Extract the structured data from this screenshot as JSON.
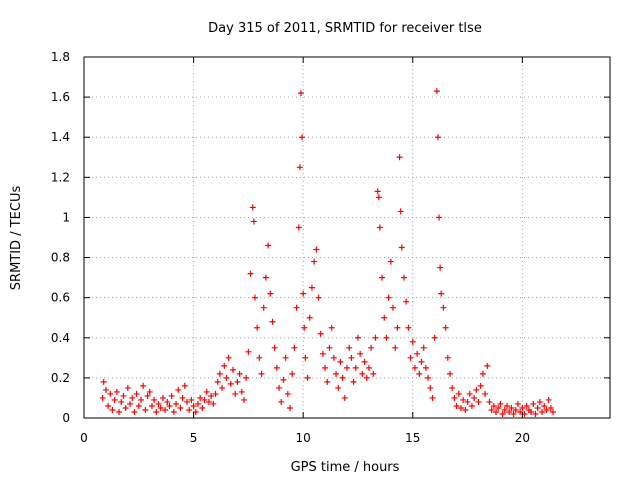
{
  "chart_data": {
    "type": "scatter",
    "title": "Day 315 of 2011, SRMTID for receiver tlse",
    "xlabel": "GPS time / hours",
    "ylabel": "SRMTID / TECUs",
    "xlim": [
      0,
      24
    ],
    "ylim": [
      0,
      1.8
    ],
    "xticks": [
      0,
      5,
      10,
      15,
      20
    ],
    "yticks": [
      0,
      0.2,
      0.4,
      0.6,
      0.8,
      1,
      1.2,
      1.4,
      1.6,
      1.8
    ],
    "xtick_labels": [
      "0",
      "5",
      "10",
      "15",
      "20"
    ],
    "ytick_labels": [
      "0",
      "0.2",
      "0.4",
      "0.6",
      "0.8",
      "1",
      "1.2",
      "1.4",
      "1.6",
      "1.8"
    ],
    "grid": true,
    "marker": "plus",
    "color": "#ff0000",
    "series": [
      {
        "name": "SRMTID",
        "points": [
          [
            0.85,
            0.1
          ],
          [
            0.9,
            0.18
          ],
          [
            1.0,
            0.14
          ],
          [
            1.1,
            0.06
          ],
          [
            1.2,
            0.12
          ],
          [
            1.3,
            0.04
          ],
          [
            1.4,
            0.09
          ],
          [
            1.5,
            0.13
          ],
          [
            1.6,
            0.03
          ],
          [
            1.7,
            0.08
          ],
          [
            1.8,
            0.11
          ],
          [
            1.9,
            0.05
          ],
          [
            2.0,
            0.15
          ],
          [
            2.1,
            0.07
          ],
          [
            2.2,
            0.1
          ],
          [
            2.3,
            0.03
          ],
          [
            2.4,
            0.12
          ],
          [
            2.5,
            0.06
          ],
          [
            2.6,
            0.09
          ],
          [
            2.7,
            0.16
          ],
          [
            2.8,
            0.04
          ],
          [
            2.9,
            0.11
          ],
          [
            3.0,
            0.13
          ],
          [
            3.1,
            0.06
          ],
          [
            3.2,
            0.09
          ],
          [
            3.3,
            0.03
          ],
          [
            3.4,
            0.07
          ],
          [
            3.5,
            0.05
          ],
          [
            3.6,
            0.1
          ],
          [
            3.7,
            0.04
          ],
          [
            3.8,
            0.08
          ],
          [
            3.9,
            0.06
          ],
          [
            4.0,
            0.11
          ],
          [
            4.1,
            0.03
          ],
          [
            4.2,
            0.07
          ],
          [
            4.3,
            0.14
          ],
          [
            4.4,
            0.05
          ],
          [
            4.5,
            0.1
          ],
          [
            4.6,
            0.16
          ],
          [
            4.7,
            0.08
          ],
          [
            4.8,
            0.04
          ],
          [
            4.9,
            0.09
          ],
          [
            5.0,
            0.06
          ],
          [
            5.1,
            0.03
          ],
          [
            5.2,
            0.07
          ],
          [
            5.3,
            0.1
          ],
          [
            5.4,
            0.05
          ],
          [
            5.5,
            0.09
          ],
          [
            5.6,
            0.13
          ],
          [
            5.7,
            0.08
          ],
          [
            5.8,
            0.11
          ],
          [
            5.9,
            0.07
          ],
          [
            6.0,
            0.12
          ],
          [
            6.1,
            0.18
          ],
          [
            6.2,
            0.22
          ],
          [
            6.3,
            0.15
          ],
          [
            6.4,
            0.26
          ],
          [
            6.5,
            0.2
          ],
          [
            6.6,
            0.3
          ],
          [
            6.7,
            0.17
          ],
          [
            6.8,
            0.24
          ],
          [
            6.9,
            0.12
          ],
          [
            7.0,
            0.18
          ],
          [
            7.1,
            0.22
          ],
          [
            7.2,
            0.13
          ],
          [
            7.3,
            0.09
          ],
          [
            7.4,
            0.2
          ],
          [
            7.5,
            0.33
          ],
          [
            7.6,
            0.72
          ],
          [
            7.7,
            1.05
          ],
          [
            7.75,
            0.98
          ],
          [
            7.8,
            0.6
          ],
          [
            7.9,
            0.45
          ],
          [
            8.0,
            0.3
          ],
          [
            8.1,
            0.22
          ],
          [
            8.2,
            0.55
          ],
          [
            8.3,
            0.7
          ],
          [
            8.4,
            0.86
          ],
          [
            8.5,
            0.62
          ],
          [
            8.6,
            0.48
          ],
          [
            8.7,
            0.35
          ],
          [
            8.8,
            0.25
          ],
          [
            8.9,
            0.15
          ],
          [
            9.0,
            0.08
          ],
          [
            9.1,
            0.19
          ],
          [
            9.2,
            0.3
          ],
          [
            9.3,
            0.12
          ],
          [
            9.4,
            0.05
          ],
          [
            9.5,
            0.22
          ],
          [
            9.6,
            0.35
          ],
          [
            9.7,
            0.55
          ],
          [
            9.8,
            0.95
          ],
          [
            9.85,
            1.25
          ],
          [
            9.9,
            1.62
          ],
          [
            9.95,
            1.4
          ],
          [
            10.0,
            0.62
          ],
          [
            10.05,
            0.45
          ],
          [
            10.1,
            0.3
          ],
          [
            10.2,
            0.2
          ],
          [
            10.3,
            0.5
          ],
          [
            10.4,
            0.65
          ],
          [
            10.5,
            0.78
          ],
          [
            10.6,
            0.84
          ],
          [
            10.7,
            0.6
          ],
          [
            10.8,
            0.42
          ],
          [
            10.9,
            0.32
          ],
          [
            11.0,
            0.25
          ],
          [
            11.1,
            0.18
          ],
          [
            11.2,
            0.35
          ],
          [
            11.3,
            0.45
          ],
          [
            11.4,
            0.3
          ],
          [
            11.5,
            0.22
          ],
          [
            11.6,
            0.15
          ],
          [
            11.7,
            0.28
          ],
          [
            11.8,
            0.2
          ],
          [
            11.9,
            0.1
          ],
          [
            12.0,
            0.25
          ],
          [
            12.1,
            0.35
          ],
          [
            12.2,
            0.3
          ],
          [
            12.3,
            0.18
          ],
          [
            12.4,
            0.25
          ],
          [
            12.5,
            0.4
          ],
          [
            12.6,
            0.32
          ],
          [
            12.7,
            0.22
          ],
          [
            12.8,
            0.28
          ],
          [
            12.9,
            0.2
          ],
          [
            13.0,
            0.25
          ],
          [
            13.1,
            0.35
          ],
          [
            13.2,
            0.22
          ],
          [
            13.3,
            0.4
          ],
          [
            13.4,
            1.13
          ],
          [
            13.45,
            1.1
          ],
          [
            13.5,
            0.95
          ],
          [
            13.6,
            0.7
          ],
          [
            13.7,
            0.5
          ],
          [
            13.8,
            0.4
          ],
          [
            13.9,
            0.6
          ],
          [
            14.0,
            0.78
          ],
          [
            14.1,
            0.55
          ],
          [
            14.2,
            0.35
          ],
          [
            14.3,
            0.45
          ],
          [
            14.4,
            1.3
          ],
          [
            14.45,
            1.03
          ],
          [
            14.5,
            0.85
          ],
          [
            14.6,
            0.7
          ],
          [
            14.7,
            0.58
          ],
          [
            14.8,
            0.45
          ],
          [
            14.9,
            0.3
          ],
          [
            15.0,
            0.38
          ],
          [
            15.1,
            0.25
          ],
          [
            15.2,
            0.32
          ],
          [
            15.3,
            0.22
          ],
          [
            15.4,
            0.28
          ],
          [
            15.5,
            0.35
          ],
          [
            15.6,
            0.25
          ],
          [
            15.7,
            0.2
          ],
          [
            15.8,
            0.15
          ],
          [
            15.9,
            0.1
          ],
          [
            16.0,
            0.4
          ],
          [
            16.1,
            1.63
          ],
          [
            16.15,
            1.4
          ],
          [
            16.2,
            1.0
          ],
          [
            16.25,
            0.75
          ],
          [
            16.3,
            0.62
          ],
          [
            16.4,
            0.55
          ],
          [
            16.5,
            0.45
          ],
          [
            16.6,
            0.3
          ],
          [
            16.7,
            0.22
          ],
          [
            16.8,
            0.15
          ],
          [
            16.9,
            0.1
          ],
          [
            17.0,
            0.06
          ],
          [
            17.1,
            0.12
          ],
          [
            17.2,
            0.05
          ],
          [
            17.3,
            0.09
          ],
          [
            17.4,
            0.04
          ],
          [
            17.5,
            0.08
          ],
          [
            17.6,
            0.12
          ],
          [
            17.7,
            0.06
          ],
          [
            17.8,
            0.1
          ],
          [
            17.9,
            0.14
          ],
          [
            18.0,
            0.08
          ],
          [
            18.1,
            0.16
          ],
          [
            18.2,
            0.22
          ],
          [
            18.3,
            0.12
          ],
          [
            18.4,
            0.26
          ],
          [
            18.5,
            0.08
          ],
          [
            18.6,
            0.04
          ],
          [
            18.7,
            0.06
          ],
          [
            18.8,
            0.03
          ],
          [
            18.9,
            0.05
          ],
          [
            19.0,
            0.07
          ],
          [
            19.1,
            0.02
          ],
          [
            19.2,
            0.04
          ],
          [
            19.3,
            0.06
          ],
          [
            19.4,
            0.03
          ],
          [
            19.5,
            0.05
          ],
          [
            19.6,
            0.02
          ],
          [
            19.7,
            0.04
          ],
          [
            19.8,
            0.07
          ],
          [
            19.9,
            0.03
          ],
          [
            20.0,
            0.05
          ],
          [
            20.1,
            0.02
          ],
          [
            20.2,
            0.06
          ],
          [
            20.3,
            0.04
          ],
          [
            20.4,
            0.03
          ],
          [
            20.5,
            0.07
          ],
          [
            20.6,
            0.02
          ],
          [
            20.7,
            0.05
          ],
          [
            20.8,
            0.08
          ],
          [
            20.9,
            0.03
          ],
          [
            21.0,
            0.06
          ],
          [
            21.1,
            0.04
          ],
          [
            21.2,
            0.09
          ],
          [
            21.3,
            0.05
          ],
          [
            21.4,
            0.03
          ]
        ]
      }
    ]
  }
}
